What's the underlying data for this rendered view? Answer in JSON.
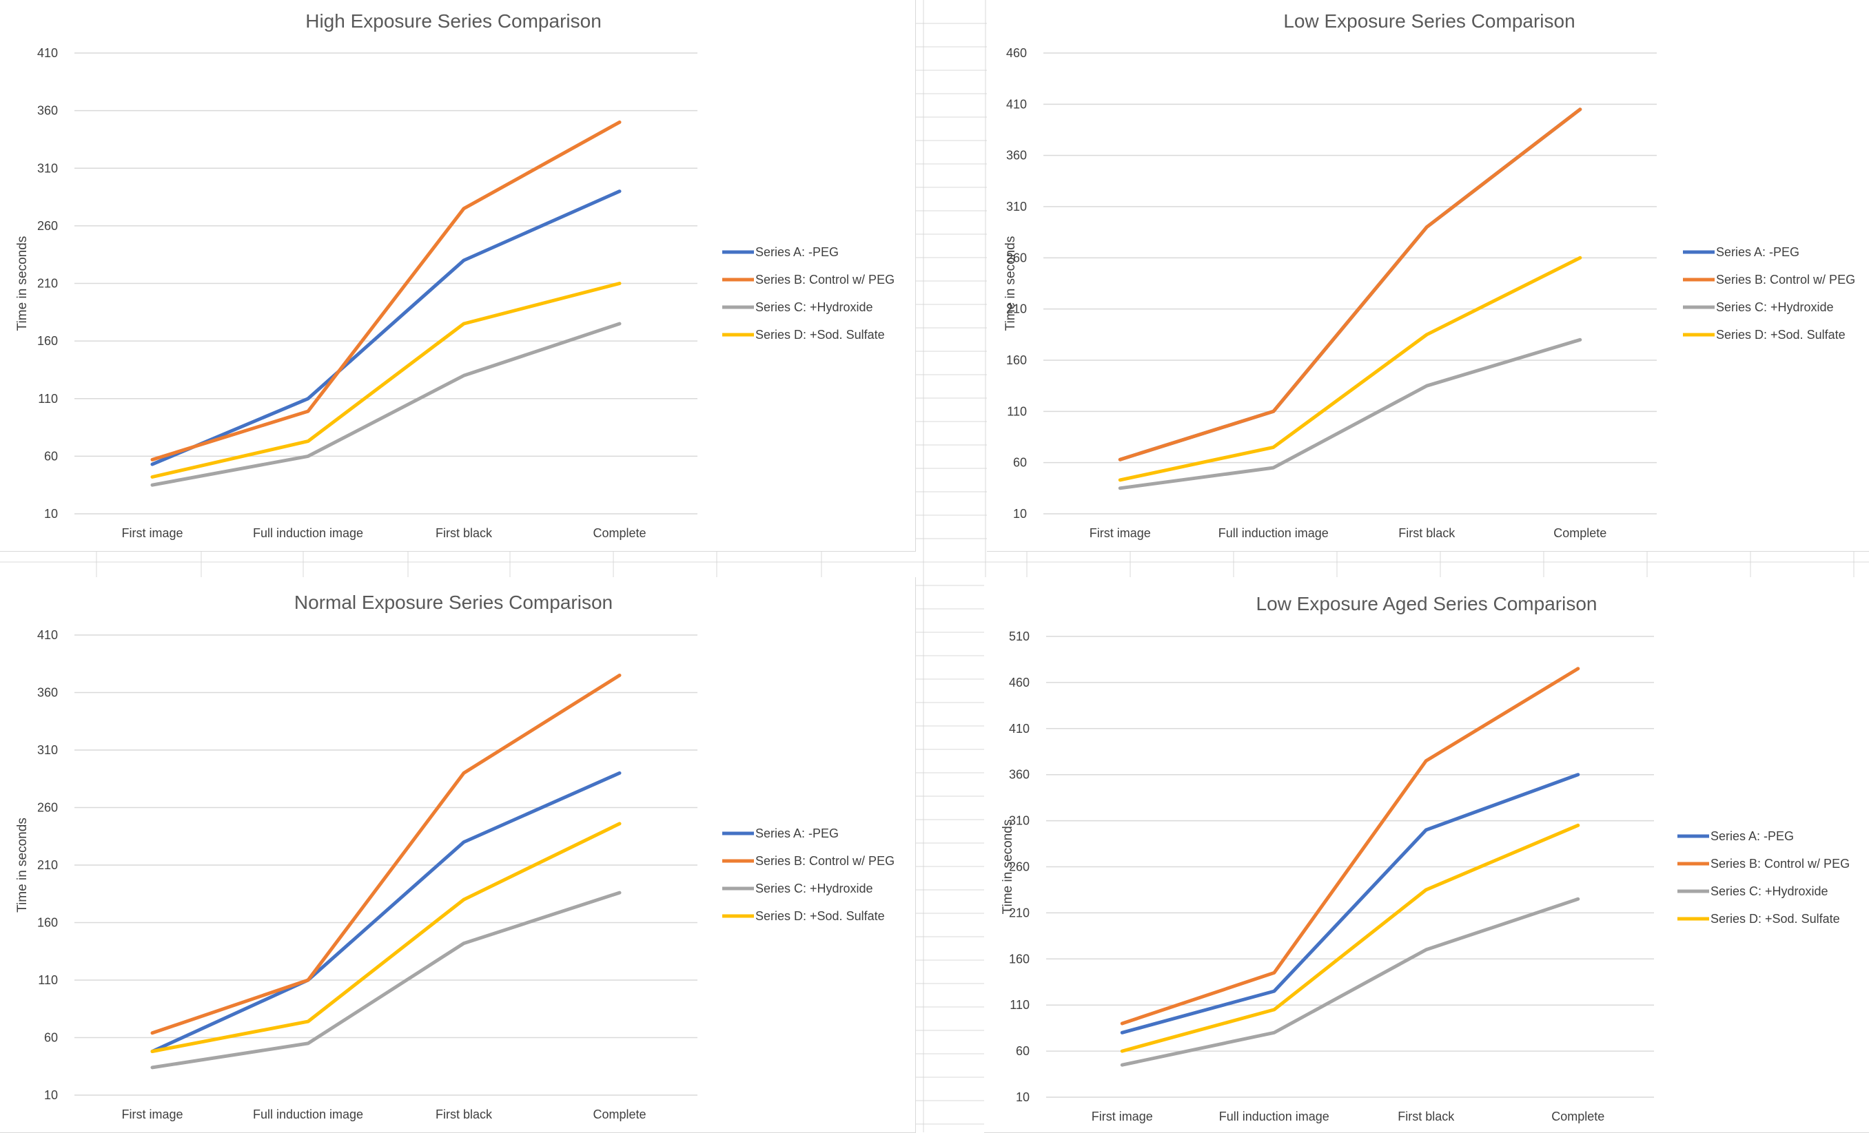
{
  "colors": {
    "series_a": "#4472c4",
    "series_b": "#ed7d31",
    "series_c": "#a5a5a5",
    "series_d": "#ffc000",
    "gridline": "#d9d9d9",
    "text": "#404040",
    "title": "#595959"
  },
  "chart_data": [
    {
      "type": "line",
      "title": "High Exposure Series Comparison",
      "xlabel": "",
      "ylabel": "Time in seconds",
      "ylim": [
        10,
        410
      ],
      "yticks": [
        10,
        60,
        110,
        160,
        210,
        260,
        310,
        360,
        410
      ],
      "categories": [
        "First image",
        "Full induction image",
        "First black",
        "Complete"
      ],
      "legend_position": "right",
      "series": [
        {
          "name": "Series A: -PEG",
          "values": [
            53,
            110,
            230,
            290
          ]
        },
        {
          "name": "Series B: Control w/ PEG",
          "values": [
            57,
            99,
            275,
            350
          ]
        },
        {
          "name": "Series C: +Hydroxide",
          "values": [
            35,
            60,
            130,
            175
          ]
        },
        {
          "name": "Series D: +Sod. Sulfate",
          "values": [
            42,
            73,
            175,
            210
          ]
        }
      ]
    },
    {
      "type": "line",
      "title": "Low Exposure Series Comparison",
      "xlabel": "",
      "ylabel": "Time in seconds",
      "ylim": [
        10,
        460
      ],
      "yticks": [
        10,
        60,
        110,
        160,
        210,
        260,
        310,
        360,
        410,
        460
      ],
      "categories": [
        "First image",
        "Full induction image",
        "First black",
        "Complete"
      ],
      "legend_position": "right",
      "series": [
        {
          "name": "Series A: -PEG",
          "values": [
            63,
            110,
            290,
            405
          ]
        },
        {
          "name": "Series B: Control w/ PEG",
          "values": [
            63,
            110,
            290,
            405
          ]
        },
        {
          "name": "Series C: +Hydroxide",
          "values": [
            35,
            55,
            135,
            180
          ]
        },
        {
          "name": "Series D: +Sod. Sulfate",
          "values": [
            43,
            75,
            185,
            260
          ]
        }
      ]
    },
    {
      "type": "line",
      "title": "Normal Exposure Series Comparison",
      "xlabel": "",
      "ylabel": "Time in seconds",
      "ylim": [
        10,
        410
      ],
      "yticks": [
        10,
        60,
        110,
        160,
        210,
        260,
        310,
        360,
        410
      ],
      "categories": [
        "First image",
        "Full induction image",
        "First black",
        "Complete"
      ],
      "legend_position": "right",
      "series": [
        {
          "name": "Series A: -PEG",
          "values": [
            48,
            110,
            230,
            290
          ]
        },
        {
          "name": "Series B: Control w/ PEG",
          "values": [
            64,
            110,
            290,
            375
          ]
        },
        {
          "name": "Series C: +Hydroxide",
          "values": [
            34,
            55,
            142,
            186
          ]
        },
        {
          "name": "Series D: +Sod. Sulfate",
          "values": [
            48,
            74,
            180,
            246
          ]
        }
      ]
    },
    {
      "type": "line",
      "title": "Low Exposure Aged Series Comparison",
      "xlabel": "",
      "ylabel": "Time in seconds",
      "ylim": [
        10,
        510
      ],
      "yticks": [
        10,
        60,
        110,
        160,
        210,
        260,
        310,
        360,
        410,
        460,
        510
      ],
      "categories": [
        "First image",
        "Full induction image",
        "First black",
        "Complete"
      ],
      "legend_position": "right",
      "series": [
        {
          "name": "Series A: -PEG",
          "values": [
            80,
            125,
            300,
            360
          ]
        },
        {
          "name": "Series B: Control w/ PEG",
          "values": [
            90,
            145,
            375,
            475
          ]
        },
        {
          "name": "Series C: +Hydroxide",
          "values": [
            45,
            80,
            170,
            225
          ]
        },
        {
          "name": "Series D: +Sod. Sulfate",
          "values": [
            60,
            105,
            235,
            305
          ]
        }
      ]
    }
  ]
}
